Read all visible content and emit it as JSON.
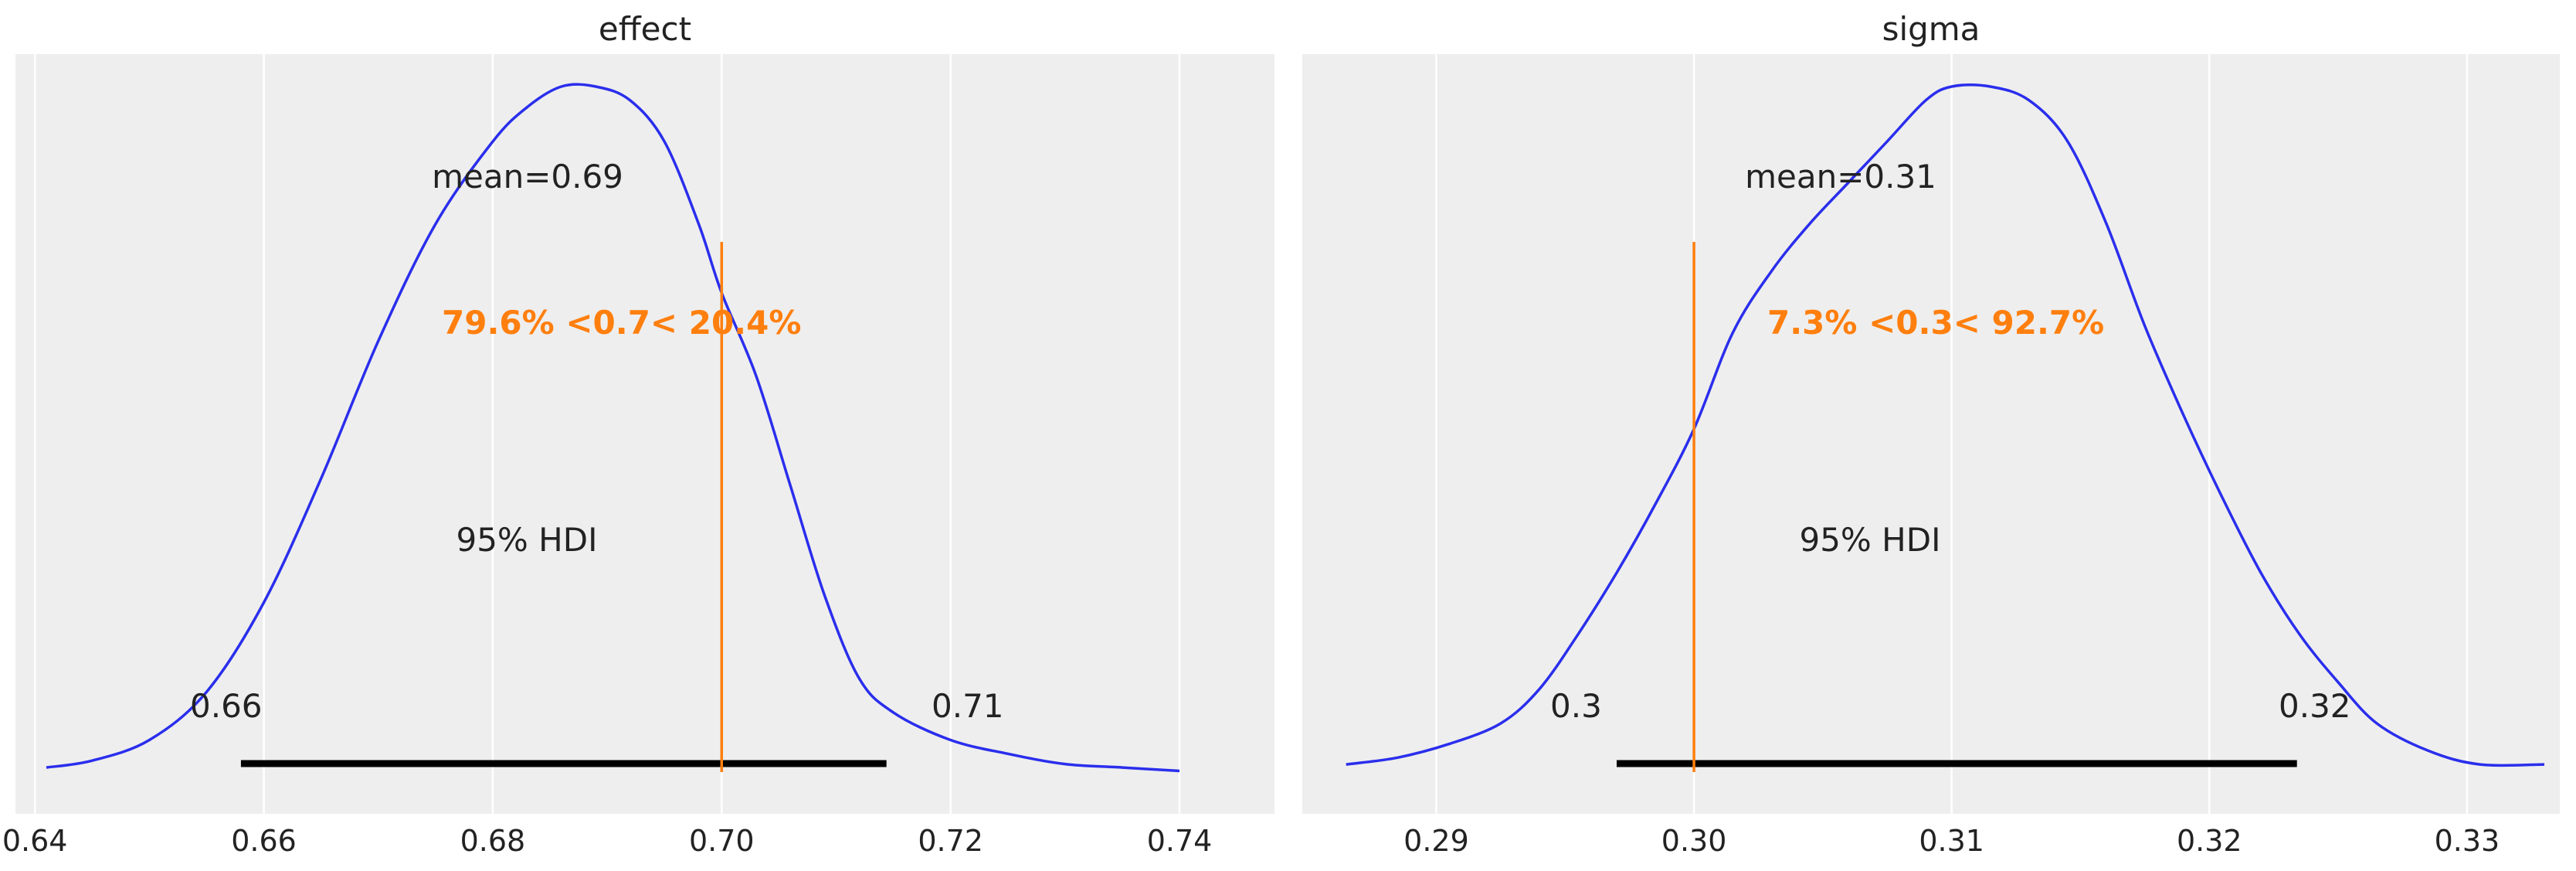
{
  "chart_data": [
    {
      "type": "area",
      "title": "effect",
      "xlim": [
        0.6383,
        0.7483
      ],
      "x_ticks": [
        0.64,
        0.66,
        0.68,
        0.7,
        0.72,
        0.74
      ],
      "x_tick_labels": [
        "0.64",
        "0.66",
        "0.68",
        "0.70",
        "0.72",
        "0.74"
      ],
      "grid": true,
      "legend": "none",
      "density": {
        "x": [
          0.641,
          0.645,
          0.65,
          0.655,
          0.66,
          0.665,
          0.67,
          0.675,
          0.68,
          0.683,
          0.686,
          0.689,
          0.692,
          0.695,
          0.698,
          0.7,
          0.703,
          0.706,
          0.709,
          0.712,
          0.715,
          0.72,
          0.725,
          0.73,
          0.735,
          0.74
        ],
        "y": [
          0.01,
          0.02,
          0.05,
          0.12,
          0.25,
          0.43,
          0.63,
          0.8,
          0.92,
          0.97,
          1.0,
          1.0,
          0.98,
          0.92,
          0.8,
          0.7,
          0.58,
          0.42,
          0.26,
          0.14,
          0.09,
          0.05,
          0.03,
          0.015,
          0.01,
          0.005
        ]
      },
      "mean_label": "mean=0.69",
      "reference": {
        "value": 0.7,
        "label": "79.6% <0.7< 20.4%",
        "color": "#ff7f0e"
      },
      "hdi": {
        "label": "95% HDI",
        "low": 0.658,
        "high": 0.7144,
        "low_label": "0.66",
        "high_label": "0.71"
      },
      "line_color": "#2a2eec"
    },
    {
      "type": "area",
      "title": "sigma",
      "xlim": [
        0.2848,
        0.3336
      ],
      "x_ticks": [
        0.29,
        0.3,
        0.31,
        0.32,
        0.33
      ],
      "x_tick_labels": [
        "0.29",
        "0.30",
        "0.31",
        "0.32",
        "0.33"
      ],
      "grid": true,
      "legend": "none",
      "density": {
        "x": [
          0.2865,
          0.2885,
          0.2905,
          0.2925,
          0.294,
          0.2955,
          0.297,
          0.2985,
          0.3,
          0.3015,
          0.303,
          0.3045,
          0.306,
          0.3075,
          0.309,
          0.31,
          0.3115,
          0.313,
          0.3145,
          0.316,
          0.3175,
          0.319,
          0.3205,
          0.322,
          0.3235,
          0.325,
          0.3265,
          0.3285,
          0.3305,
          0.333
        ],
        "y": [
          0.01,
          0.02,
          0.04,
          0.07,
          0.12,
          0.2,
          0.29,
          0.39,
          0.5,
          0.64,
          0.73,
          0.8,
          0.86,
          0.92,
          0.98,
          1.0,
          1.0,
          0.98,
          0.92,
          0.8,
          0.65,
          0.52,
          0.4,
          0.29,
          0.2,
          0.13,
          0.07,
          0.03,
          0.01,
          0.01
        ]
      },
      "mean_label": "mean=0.31",
      "reference": {
        "value": 0.3,
        "label": "7.3% <0.3< 92.7%",
        "color": "#ff7f0e"
      },
      "hdi": {
        "label": "95% HDI",
        "low": 0.297,
        "high": 0.3234,
        "low_label": "0.3",
        "high_label": "0.32"
      },
      "line_color": "#2a2eec"
    }
  ]
}
